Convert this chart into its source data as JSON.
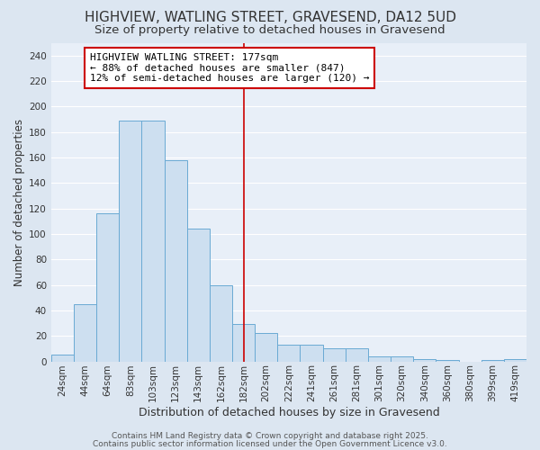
{
  "title": "HIGHVIEW, WATLING STREET, GRAVESEND, DA12 5UD",
  "subtitle": "Size of property relative to detached houses in Gravesend",
  "xlabel": "Distribution of detached houses by size in Gravesend",
  "ylabel": "Number of detached properties",
  "categories": [
    "24sqm",
    "44sqm",
    "64sqm",
    "83sqm",
    "103sqm",
    "123sqm",
    "143sqm",
    "162sqm",
    "182sqm",
    "202sqm",
    "222sqm",
    "241sqm",
    "261sqm",
    "281sqm",
    "301sqm",
    "320sqm",
    "340sqm",
    "360sqm",
    "380sqm",
    "399sqm",
    "419sqm"
  ],
  "values": [
    5,
    45,
    116,
    189,
    189,
    158,
    104,
    60,
    29,
    22,
    13,
    13,
    10,
    10,
    4,
    4,
    2,
    1,
    0,
    1,
    2
  ],
  "bar_color": "#cddff0",
  "bar_edge_color": "#6aaad4",
  "vline_color": "#cc0000",
  "vline_x": 8.5,
  "annotation_text_line1": "HIGHVIEW WATLING STREET: 177sqm",
  "annotation_text_line2": "← 88% of detached houses are smaller (847)",
  "annotation_text_line3": "12% of semi-detached houses are larger (120) →",
  "annotation_box_facecolor": "#ffffff",
  "annotation_box_edgecolor": "#cc0000",
  "ylim": [
    0,
    250
  ],
  "yticks": [
    0,
    20,
    40,
    60,
    80,
    100,
    120,
    140,
    160,
    180,
    200,
    220,
    240
  ],
  "bg_color": "#dce6f1",
  "plot_bg_color": "#e8eff8",
  "grid_color": "#ffffff",
  "footer_line1": "Contains HM Land Registry data © Crown copyright and database right 2025.",
  "footer_line2": "Contains public sector information licensed under the Open Government Licence v3.0.",
  "title_fontsize": 11,
  "subtitle_fontsize": 9.5,
  "xlabel_fontsize": 9,
  "ylabel_fontsize": 8.5,
  "tick_fontsize": 7.5,
  "annotation_fontsize": 8,
  "footer_fontsize": 6.5
}
